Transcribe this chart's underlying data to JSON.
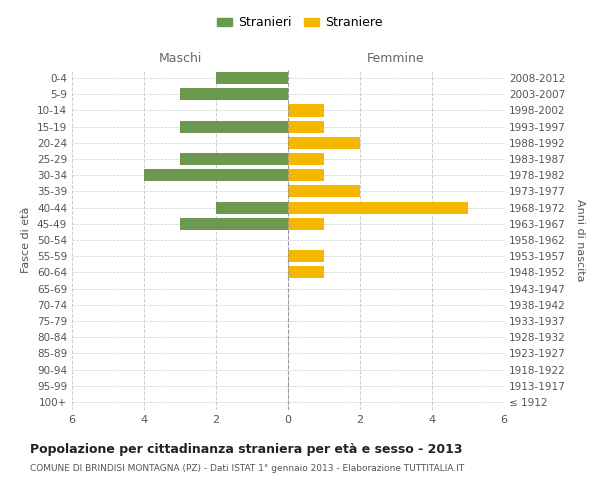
{
  "age_groups": [
    "100+",
    "95-99",
    "90-94",
    "85-89",
    "80-84",
    "75-79",
    "70-74",
    "65-69",
    "60-64",
    "55-59",
    "50-54",
    "45-49",
    "40-44",
    "35-39",
    "30-34",
    "25-29",
    "20-24",
    "15-19",
    "10-14",
    "5-9",
    "0-4"
  ],
  "birth_years": [
    "≤ 1912",
    "1913-1917",
    "1918-1922",
    "1923-1927",
    "1928-1932",
    "1933-1937",
    "1938-1942",
    "1943-1947",
    "1948-1952",
    "1953-1957",
    "1958-1962",
    "1963-1967",
    "1968-1972",
    "1973-1977",
    "1978-1982",
    "1983-1987",
    "1988-1992",
    "1993-1997",
    "1998-2002",
    "2003-2007",
    "2008-2012"
  ],
  "males": [
    0,
    0,
    0,
    0,
    0,
    0,
    0,
    0,
    0,
    0,
    0,
    3,
    2,
    0,
    4,
    3,
    0,
    3,
    0,
    3,
    2
  ],
  "females": [
    0,
    0,
    0,
    0,
    0,
    0,
    0,
    0,
    1,
    1,
    0,
    1,
    5,
    2,
    1,
    1,
    2,
    1,
    1,
    0,
    0
  ],
  "male_color": "#6b9a4e",
  "female_color": "#f5b800",
  "title": "Popolazione per cittadinanza straniera per età e sesso - 2013",
  "subtitle": "COMUNE DI BRINDISI MONTAGNA (PZ) - Dati ISTAT 1° gennaio 2013 - Elaborazione TUTTITALIA.IT",
  "xlabel_left": "Maschi",
  "xlabel_right": "Femmine",
  "ylabel_left": "Fasce di età",
  "ylabel_right": "Anni di nascita",
  "legend_male": "Stranieri",
  "legend_female": "Straniere",
  "xlim": 6,
  "background_color": "#ffffff",
  "grid_color": "#cccccc",
  "bar_height": 0.75
}
